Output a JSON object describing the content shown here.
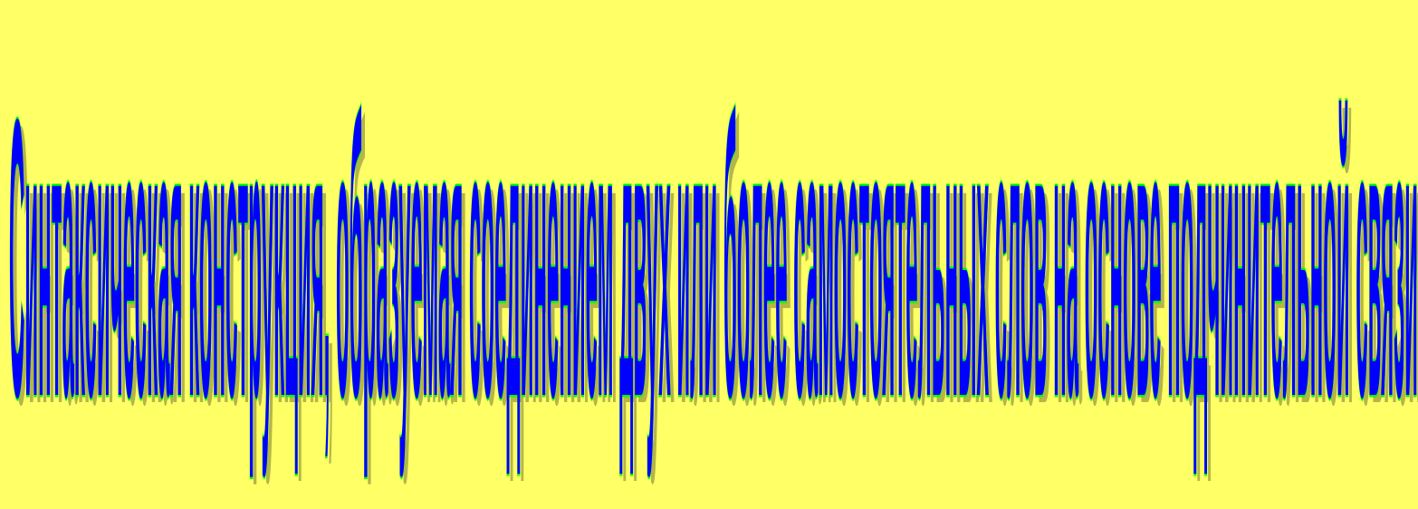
{
  "slide": {
    "background": "#ffff66",
    "text": "Синтаксическая конструкция, образуемая соединением двух или более самостоятельных слов на основе подчинительной связи",
    "text_fill": "#0000ff",
    "text_outline": "#00ff00"
  }
}
